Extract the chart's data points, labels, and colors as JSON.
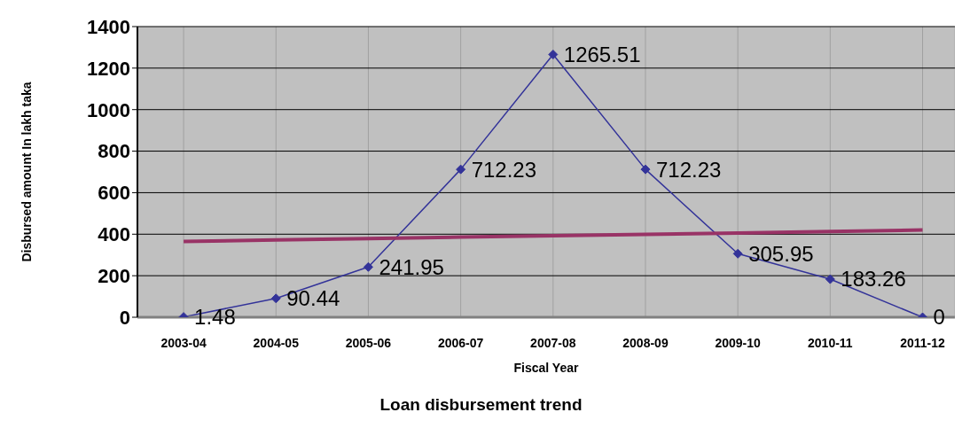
{
  "chart_data": {
    "type": "line",
    "title": "Loan disbursement trend",
    "xlabel": "Fiscal Year",
    "ylabel": "Disbursed amount In lakh taka",
    "categories": [
      "2003-04",
      "2004-05",
      "2005-06",
      "2006-07",
      "2007-08",
      "2008-09",
      "2009-10",
      "2010-11",
      "2011-12"
    ],
    "series": [
      {
        "color": "#333399",
        "values": [
          1.48,
          90.44,
          241.95,
          712.23,
          1265.51,
          712.23,
          305.95,
          183.26,
          0
        ],
        "value_labels": [
          "1.48",
          "90.44",
          "241.95",
          "712.23",
          "1265.51",
          "712.23",
          "305.95",
          "183.26",
          "0"
        ],
        "marker": "diamond"
      },
      {
        "type": "line",
        "color": "#993366",
        "values": [
          365,
          372,
          379,
          386,
          393,
          399,
          406,
          413,
          420
        ],
        "marker": "none"
      }
    ],
    "ylim": [
      0,
      1400
    ],
    "yticks": [
      0,
      200,
      400,
      600,
      800,
      1000,
      1200,
      1400
    ],
    "grid": true,
    "legend": false,
    "line_style": "solid"
  }
}
